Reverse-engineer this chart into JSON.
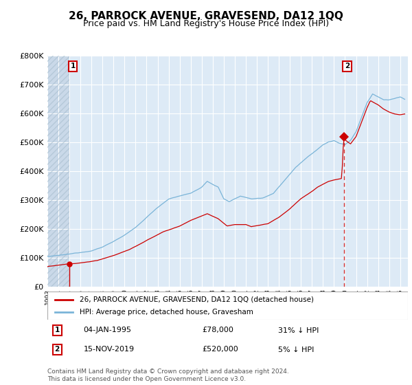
{
  "title": "26, PARROCK AVENUE, GRAVESEND, DA12 1QQ",
  "subtitle": "Price paid vs. HM Land Registry's House Price Index (HPI)",
  "ylim": [
    0,
    800000
  ],
  "yticks": [
    0,
    100000,
    200000,
    300000,
    400000,
    500000,
    600000,
    700000,
    800000
  ],
  "ytick_labels": [
    "£0",
    "£100K",
    "£200K",
    "£300K",
    "£400K",
    "£500K",
    "£600K",
    "£700K",
    "£800K"
  ],
  "xlim_start": 1993.0,
  "xlim_end": 2025.7,
  "hpi_color": "#7ab4d8",
  "price_color": "#cc0000",
  "sale1_date": 1995.02,
  "sale1_price": 78000,
  "sale2_date": 2019.88,
  "sale2_price": 520000,
  "plot_bg": "#ddeaf6",
  "grid_color": "#ffffff",
  "legend_entry1": "26, PARROCK AVENUE, GRAVESEND, DA12 1QQ (detached house)",
  "legend_entry2": "HPI: Average price, detached house, Gravesham",
  "annotation1_date": "04-JAN-1995",
  "annotation1_price": "£78,000",
  "annotation1_hpi": "31% ↓ HPI",
  "annotation2_date": "15-NOV-2019",
  "annotation2_price": "£520,000",
  "annotation2_hpi": "5% ↓ HPI",
  "footer": "Contains HM Land Registry data © Crown copyright and database right 2024.\nThis data is licensed under the Open Government Licence v3.0.",
  "title_fontsize": 11,
  "subtitle_fontsize": 9
}
